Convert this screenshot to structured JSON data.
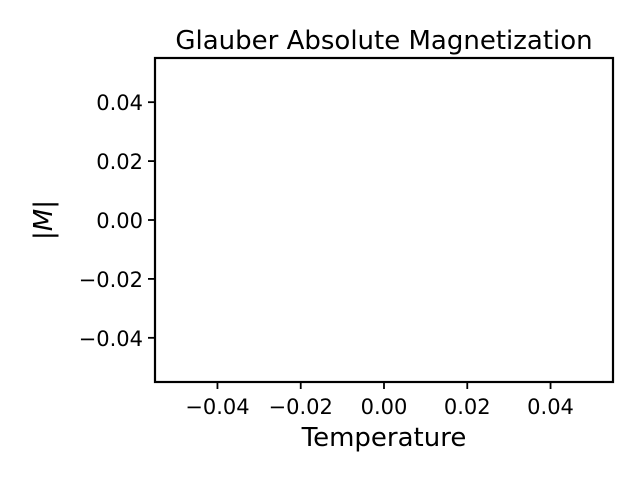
{
  "chart_data": {
    "type": "line",
    "title": "Glauber Absolute Magnetization",
    "xlabel": "Temperature",
    "ylabel": "|M|",
    "xlim": [
      -0.055,
      0.055
    ],
    "ylim": [
      -0.055,
      0.055
    ],
    "xticks": [
      -0.04,
      -0.02,
      0.0,
      0.02,
      0.04
    ],
    "yticks": [
      -0.04,
      -0.02,
      0.0,
      0.02,
      0.04
    ],
    "xtick_labels": [
      "−0.04",
      "−0.02",
      "0.00",
      "0.02",
      "0.04"
    ],
    "ytick_labels": [
      "−0.04",
      "−0.02",
      "0.00",
      "0.02",
      "0.04"
    ],
    "grid": false,
    "series": [
      {
        "x": [],
        "y": [],
        "color": "#1f77b4"
      }
    ]
  }
}
